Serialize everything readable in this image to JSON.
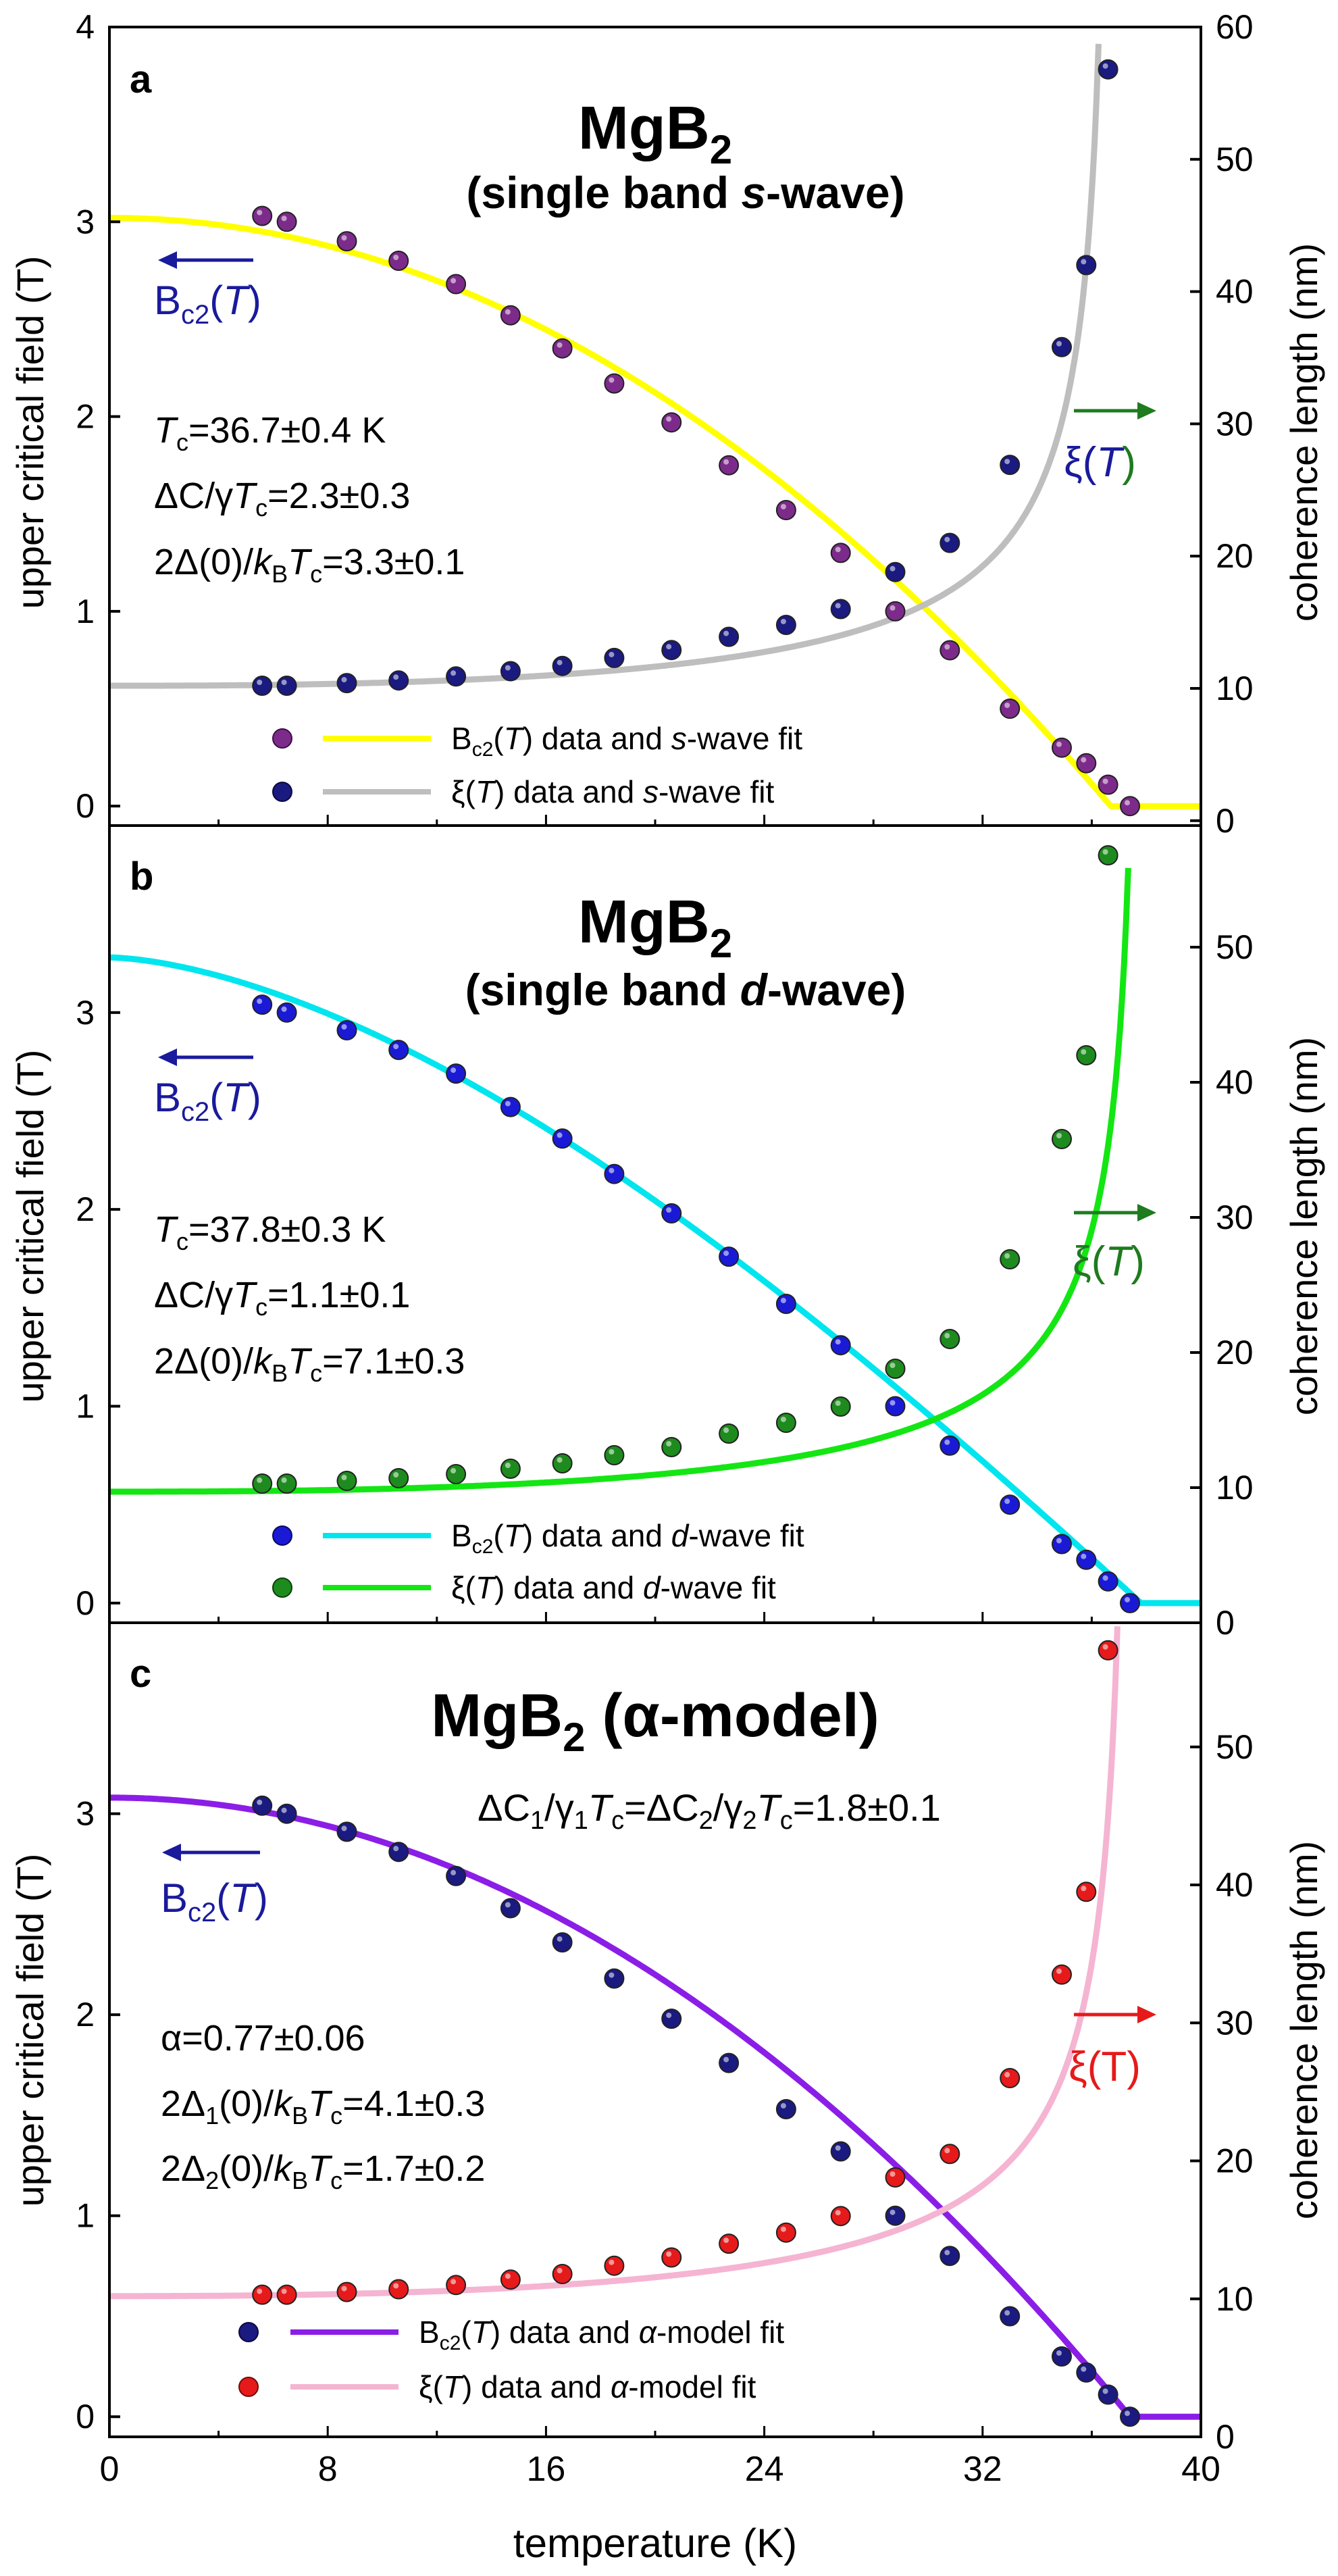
{
  "figure": {
    "xlabel": "temperature (K)",
    "x_ticks": [
      "0",
      "8",
      "16",
      "24",
      "32",
      "40"
    ],
    "left_axis_label": "upper critical field (T)",
    "right_axis_label": "coherence length (nm)"
  },
  "chart_data": [
    {
      "type": "scatter",
      "panel": "a",
      "title": "MgB",
      "title_sub": "2",
      "subtitle_pre": "(single band ",
      "subtitle_em": "s",
      "subtitle_post": "-wave)",
      "xlabel": "temperature (K)",
      "ylabel": "upper critical field (T)",
      "y2label": "coherence length (nm)",
      "xlim": [
        0,
        40
      ],
      "ylim": [
        -0.1,
        4.0
      ],
      "y2lim": [
        -0.37,
        60
      ],
      "y_ticks": [
        "0",
        "1",
        "2",
        "3",
        "4"
      ],
      "y2_ticks": [
        "0",
        "10",
        "20",
        "30",
        "40",
        "50",
        "60"
      ],
      "params": [
        {
          "pre": "",
          "it": "T",
          "sub": "c",
          "post": "=36.7±0.4 K"
        },
        {
          "pre": "ΔC/γ",
          "it": "T",
          "sub": "c",
          "post": "=2.3±0.3"
        },
        {
          "pre": "2Δ(0)/k",
          "sub0": "B",
          "it": "T",
          "sub": "c",
          "post": "=3.3±0.1"
        }
      ],
      "left_arrow_label": "Bc2(T)",
      "right_arrow_label": "ξ(T)",
      "colors": {
        "bc2_dot": "#7d2b8b",
        "bc2_line": "#ffff00",
        "xi_dot": "#1a1a80",
        "xi_line": "#bebebe",
        "left_arrow": "#1a1a9c",
        "right_arrow": "#1e7b1e",
        "xi_label": "#1a1a9c"
      },
      "legend": [
        {
          "label": "Bc2(T) data and s-wave fit"
        },
        {
          "label": "ξ(T) data and s-wave fit"
        }
      ],
      "series": [
        {
          "name": "Bc2(T) data",
          "axis": "left",
          "x": [
            5.6,
            6.5,
            8.7,
            10.6,
            12.7,
            14.7,
            16.6,
            18.5,
            20.6,
            22.7,
            24.8,
            26.8,
            28.8,
            30.8,
            33.0,
            34.9,
            35.8,
            36.6,
            37.4
          ],
          "values": [
            3.03,
            3.0,
            2.9,
            2.8,
            2.68,
            2.52,
            2.35,
            2.17,
            1.97,
            1.75,
            1.52,
            1.3,
            1.0,
            0.8,
            0.5,
            0.3,
            0.22,
            0.11,
            0.0
          ]
        },
        {
          "name": "xi(T) data",
          "axis": "right",
          "x": [
            5.6,
            6.5,
            8.7,
            10.6,
            12.7,
            14.7,
            16.6,
            18.5,
            20.6,
            22.7,
            24.8,
            26.8,
            28.8,
            30.8,
            33.0,
            34.9,
            35.8,
            36.6
          ],
          "values": [
            10.2,
            10.2,
            10.4,
            10.6,
            10.9,
            11.3,
            11.7,
            12.3,
            12.9,
            13.9,
            14.8,
            16.0,
            18.8,
            21.0,
            26.9,
            35.8,
            42.0,
            56.8
          ]
        },
        {
          "name": "Bc2(T) s-wave fit",
          "axis": "left",
          "fit": "bc2",
          "params": {
            "tc": 36.7,
            "b0": 3.02,
            "bexp": 2.0,
            "bk": 0.0
          }
        },
        {
          "name": "xi(T) s-wave fit",
          "axis": "right",
          "fit": "xi",
          "params": {
            "tc": 36.7,
            "xi0": 10.2
          }
        }
      ]
    },
    {
      "type": "scatter",
      "panel": "b",
      "title": "MgB",
      "title_sub": "2",
      "subtitle_pre": "(single band ",
      "subtitle_em": "d",
      "subtitle_post": "-wave)",
      "xlabel": "temperature (K)",
      "ylabel": "upper critical field (T)",
      "y2label": "coherence length (nm)",
      "xlim": [
        0,
        40
      ],
      "ylim": [
        -0.1,
        3.95
      ],
      "y2lim": [
        0,
        59
      ],
      "y_ticks": [
        "0",
        "1",
        "2",
        "3"
      ],
      "y2_ticks": [
        "0",
        "10",
        "20",
        "30",
        "40",
        "50"
      ],
      "params": [
        {
          "pre": "",
          "it": "T",
          "sub": "c",
          "post": "=37.8±0.3 K"
        },
        {
          "pre": "ΔC/γ",
          "it": "T",
          "sub": "c",
          "post": "=1.1±0.1"
        },
        {
          "pre": "2Δ(0)/k",
          "sub0": "B",
          "it": "T",
          "sub": "c",
          "post": "=7.1±0.3"
        }
      ],
      "left_arrow_label": "Bc2(T)",
      "right_arrow_label": "ξ(T)",
      "colors": {
        "bc2_dot": "#1a1ad6",
        "bc2_line": "#00e5ee",
        "xi_dot": "#1e8b1e",
        "xi_line": "#14e614",
        "left_arrow": "#1a1a9c",
        "right_arrow": "#1e7b1e",
        "xi_label": "#1e7b1e"
      },
      "legend": [
        {
          "label": "Bc2(T) data and d-wave fit"
        },
        {
          "label": "ξ(T) data and d-wave fit"
        }
      ],
      "series": [
        {
          "name": "Bc2(T) data",
          "axis": "left",
          "x": [
            5.6,
            6.5,
            8.7,
            10.6,
            12.7,
            14.7,
            16.6,
            18.5,
            20.6,
            22.7,
            24.8,
            26.8,
            28.8,
            30.8,
            33.0,
            34.9,
            35.8,
            36.6,
            37.4
          ],
          "values": [
            3.04,
            3.0,
            2.91,
            2.81,
            2.69,
            2.52,
            2.36,
            2.18,
            1.98,
            1.76,
            1.52,
            1.31,
            1.0,
            0.8,
            0.5,
            0.3,
            0.22,
            0.11,
            0.0
          ]
        },
        {
          "name": "xi(T) data",
          "axis": "right",
          "x": [
            5.6,
            6.5,
            8.7,
            10.6,
            12.7,
            14.7,
            16.6,
            18.5,
            20.6,
            22.7,
            24.8,
            26.8,
            28.8,
            30.8,
            33.0,
            34.9,
            35.8,
            36.6
          ],
          "values": [
            10.3,
            10.3,
            10.5,
            10.7,
            11.0,
            11.4,
            11.8,
            12.4,
            13.0,
            14.0,
            14.8,
            16.0,
            18.8,
            21.0,
            26.9,
            35.8,
            42.0,
            56.8
          ]
        },
        {
          "name": "Bc2(T) d-wave fit",
          "axis": "left",
          "fit": "bc2",
          "params": {
            "tc": 37.8,
            "b0": 3.28,
            "bexp": 1.6,
            "bk": 0.09
          }
        },
        {
          "name": "xi(T) d-wave fit",
          "axis": "right",
          "fit": "xi",
          "params": {
            "tc": 37.8,
            "xi0": 9.7
          }
        }
      ]
    },
    {
      "type": "scatter",
      "panel": "c",
      "title": "MgB",
      "title_sub": "2",
      "title_post": " (α-model)",
      "params_top": "ΔC1/γ1Tc=ΔC2/γ2Tc=1.8±0.1",
      "xlabel": "temperature (K)",
      "ylabel": "upper critical field (T)",
      "y2label": "coherence length (nm)",
      "xlim": [
        0,
        40
      ],
      "ylim": [
        -0.1,
        3.95
      ],
      "y2lim": [
        0,
        59
      ],
      "y_ticks": [
        "0",
        "1",
        "2",
        "3"
      ],
      "y2_ticks": [
        "0",
        "10",
        "20",
        "30",
        "40",
        "50"
      ],
      "params": [
        {
          "pre": "α=0.77±0.06",
          "it": "",
          "sub": "",
          "post": ""
        },
        {
          "pre": "2Δ",
          "sub0": "1",
          "mid": "(0)/k",
          "sub1": "B",
          "it": "T",
          "sub": "c",
          "post": "=4.1±0.3"
        },
        {
          "pre": "2Δ",
          "sub0": "2",
          "mid": "(0)/k",
          "sub1": "B",
          "it": "T",
          "sub": "c",
          "post": "=1.7±0.2"
        }
      ],
      "left_arrow_label": "Bc2(T)",
      "right_arrow_label": "ξ(T)",
      "colors": {
        "bc2_dot": "#1a1a80",
        "bc2_line": "#8b1ee6",
        "xi_dot": "#e61a1a",
        "xi_line": "#f5b4d2",
        "left_arrow": "#1a1a9c",
        "right_arrow": "#e61a1a",
        "xi_label": "#e61a1a"
      },
      "legend": [
        {
          "label": "Bc2(T) data and α-model fit"
        },
        {
          "label": "ξ(T) data and α-model fit"
        }
      ],
      "series": [
        {
          "name": "Bc2(T) data",
          "axis": "left",
          "x": [
            5.6,
            6.5,
            8.7,
            10.6,
            12.7,
            14.7,
            16.6,
            18.5,
            20.6,
            22.7,
            24.8,
            26.8,
            28.8,
            30.8,
            33.0,
            34.9,
            35.8,
            36.6,
            37.4
          ],
          "values": [
            3.04,
            3.0,
            2.91,
            2.81,
            2.69,
            2.53,
            2.36,
            2.18,
            1.98,
            1.76,
            1.53,
            1.32,
            1.0,
            0.8,
            0.5,
            0.3,
            0.22,
            0.11,
            0.0
          ]
        },
        {
          "name": "xi(T) data",
          "axis": "right",
          "x": [
            5.6,
            6.5,
            8.7,
            10.6,
            12.7,
            14.7,
            16.6,
            18.5,
            20.6,
            22.7,
            24.8,
            26.8,
            28.8,
            30.8,
            33.0,
            34.9,
            35.8,
            36.6
          ],
          "values": [
            10.3,
            10.3,
            10.5,
            10.7,
            11.0,
            11.4,
            11.8,
            12.4,
            13.0,
            14.0,
            14.8,
            16.0,
            18.8,
            20.5,
            26.0,
            33.5,
            39.5,
            57.0
          ]
        },
        {
          "name": "Bc2(T) α-model fit",
          "axis": "left",
          "fit": "bc2",
          "params": {
            "tc": 37.4,
            "b0": 3.08,
            "bexp": 2.0,
            "bk": 0.0
          }
        },
        {
          "name": "xi(T) α-model fit",
          "axis": "right",
          "fit": "xi",
          "params": {
            "tc": 37.4,
            "xi0": 10.2
          }
        }
      ]
    }
  ]
}
